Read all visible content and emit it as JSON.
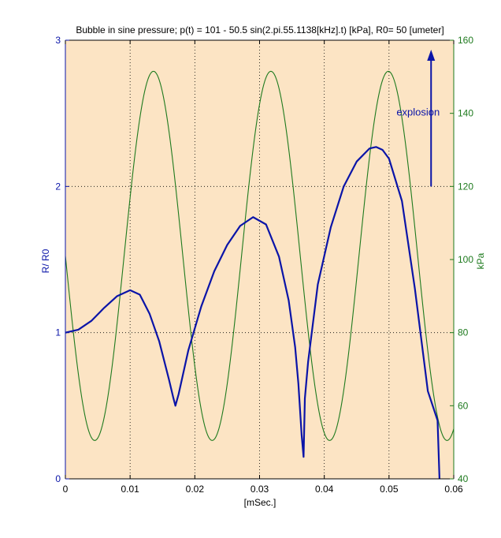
{
  "chart_data": {
    "type": "line",
    "title": "Bubble in sine pressure; p(t) = 101 - 50.5 sin(2.pi.55.1138[kHz].t) [kPa], R0= 50 [umeter]",
    "xlabel": "[mSec.]",
    "ylabel_left": "R/ R0",
    "ylabel_right": "kPa",
    "xlim": [
      0,
      0.06
    ],
    "ylim_left": [
      0,
      3
    ],
    "ylim_right": [
      40,
      160
    ],
    "xticks": [
      "0",
      "0.01",
      "0.02",
      "0.03",
      "0.04",
      "0.05",
      "0.06"
    ],
    "yticks_left": [
      "0",
      "1",
      "2",
      "3"
    ],
    "yticks_right": [
      "40",
      "60",
      "80",
      "100",
      "120",
      "140",
      "160"
    ],
    "grid": true,
    "colors": {
      "plot_bg": "#FCE4C4",
      "radius": "#0A14A8",
      "pressure": "#1E7A1E",
      "grid": "#000000"
    },
    "series": [
      {
        "axis": "left",
        "x": [
          0,
          0.002,
          0.004,
          0.006,
          0.008,
          0.01,
          0.0115,
          0.013,
          0.0145,
          0.016,
          0.0167,
          0.017,
          0.0175,
          0.019,
          0.021,
          0.023,
          0.025,
          0.027,
          0.029,
          0.031,
          0.033,
          0.0345,
          0.0355,
          0.036,
          0.0365,
          0.0368,
          0.037,
          0.0375,
          0.039,
          0.041,
          0.043,
          0.045,
          0.047,
          0.048,
          0.049,
          0.05,
          0.052,
          0.054,
          0.056,
          0.0575,
          0.0578
        ],
        "values": [
          1.0,
          1.02,
          1.08,
          1.17,
          1.25,
          1.29,
          1.26,
          1.13,
          0.94,
          0.68,
          0.55,
          0.5,
          0.58,
          0.88,
          1.18,
          1.42,
          1.6,
          1.73,
          1.79,
          1.74,
          1.52,
          1.22,
          0.9,
          0.65,
          0.3,
          0.15,
          0.55,
          0.8,
          1.33,
          1.72,
          2.0,
          2.17,
          2.26,
          2.27,
          2.25,
          2.19,
          1.9,
          1.3,
          0.6,
          0.4,
          0.0
        ]
      },
      {
        "axis": "right",
        "formula": "101 - 50.5 sin(2.pi.55.1138[kHz].t)",
        "amplitude": 50.5,
        "offset": 101,
        "frequency_khz": 55.1138
      }
    ],
    "annotations": [
      {
        "text": "explosion",
        "x": 0.0573,
        "y_left": 2.0
      }
    ]
  }
}
